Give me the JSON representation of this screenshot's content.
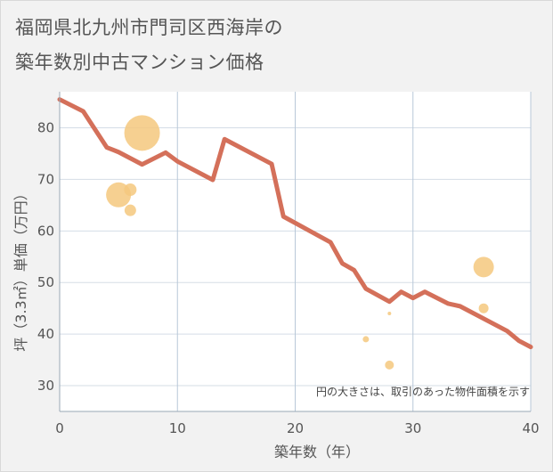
{
  "title_lines": [
    "福岡県北九州市門司区西海岸の",
    "築年数別中古マンション価格"
  ],
  "chart_data": {
    "type": "line",
    "title": "福岡県北九州市門司区西海岸の築年数別中古マンション価格",
    "xlabel": "築年数（年）",
    "ylabel": "坪（3.3㎡）単価（万円）",
    "xlim": [
      0,
      40
    ],
    "ylim": [
      25,
      87
    ],
    "xticks": [
      0,
      10,
      20,
      30,
      40
    ],
    "yticks": [
      30,
      40,
      50,
      60,
      70,
      80
    ],
    "grid": true,
    "annotation": "円の大きさは、取引のあった物件面積を示す",
    "line": {
      "color": "#d4705a",
      "x": [
        0,
        2,
        4,
        5,
        7,
        9,
        10,
        13,
        14,
        18,
        19,
        23,
        24,
        25,
        26,
        28,
        29,
        30,
        31,
        33,
        34,
        38,
        39,
        40
      ],
      "y": [
        85.5,
        83.2,
        76.2,
        75.3,
        72.9,
        75.2,
        73.5,
        69.9,
        77.8,
        73.0,
        62.8,
        57.8,
        53.7,
        52.4,
        48.8,
        46.3,
        48.2,
        47.0,
        48.2,
        45.9,
        45.4,
        40.6,
        38.7,
        37.5
      ]
    },
    "bubbles": {
      "color": "#f5c87e",
      "points": [
        {
          "x": 7,
          "y": 79,
          "size": 40
        },
        {
          "x": 5,
          "y": 67,
          "size": 28
        },
        {
          "x": 6,
          "y": 68,
          "size": 14
        },
        {
          "x": 6,
          "y": 64,
          "size": 13
        },
        {
          "x": 36,
          "y": 53,
          "size": 23
        },
        {
          "x": 36,
          "y": 45,
          "size": 11
        },
        {
          "x": 28,
          "y": 44,
          "size": 4
        },
        {
          "x": 26,
          "y": 39,
          "size": 7
        },
        {
          "x": 28,
          "y": 34,
          "size": 10
        }
      ]
    }
  }
}
